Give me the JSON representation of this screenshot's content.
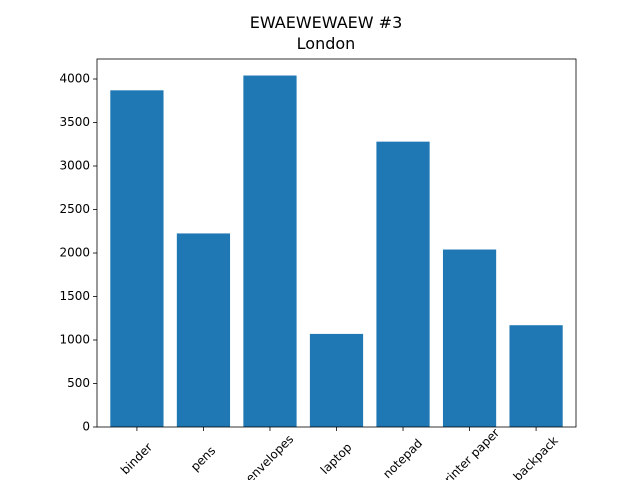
{
  "chart_data": {
    "type": "bar",
    "title": "EWAEWEWAEW  #3",
    "subtitle": "London",
    "categories": [
      "binder",
      "pens",
      "envelopes",
      "laptop",
      "notepad",
      "printer paper",
      "backpack"
    ],
    "values": [
      3870,
      2225,
      4040,
      1070,
      3280,
      2040,
      1170
    ],
    "color": "#1f77b4",
    "ylim": [
      0,
      4230
    ],
    "yticks": [
      0,
      500,
      1000,
      1500,
      2000,
      2500,
      3000,
      3500,
      4000
    ],
    "grid": false
  }
}
